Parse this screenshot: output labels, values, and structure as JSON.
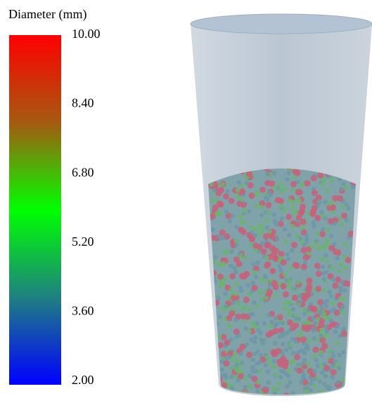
{
  "legend": {
    "title": "Diameter (mm)",
    "range": [
      2,
      10
    ],
    "ticks": [
      {
        "value": 10,
        "label": "10.00"
      },
      {
        "value": 8.4,
        "label": "8.40"
      },
      {
        "value": 6.8,
        "label": "6.80"
      },
      {
        "value": 5.2,
        "label": "5.20"
      },
      {
        "value": 3.6,
        "label": "3.60"
      },
      {
        "value": 2,
        "label": "2.00"
      }
    ],
    "colors": [
      "#ff0000",
      "#a55a10",
      "#00ff00",
      "#1f8080",
      "#0000ff"
    ]
  }
}
